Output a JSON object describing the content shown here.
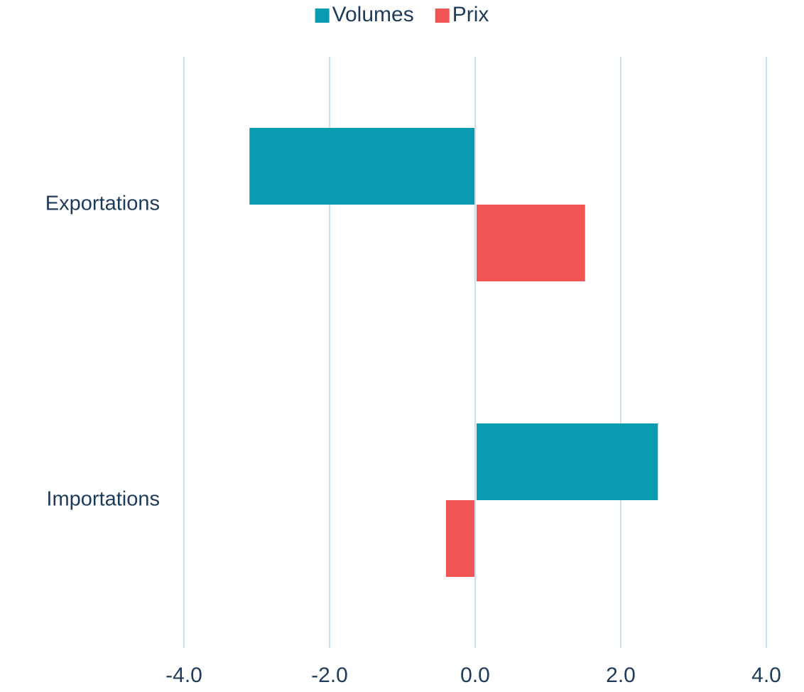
{
  "chart_data": {
    "type": "barh",
    "categories": [
      "Exportations",
      "Importations"
    ],
    "series": [
      {
        "name": "Volumes",
        "color": "#0a9bb0",
        "values": [
          -3.1,
          2.5
        ]
      },
      {
        "name": "Prix",
        "color": "#f05454",
        "values": [
          1.5,
          -0.4
        ]
      }
    ],
    "xlim": [
      -4,
      4
    ],
    "xticks": [
      {
        "value": -4,
        "label": "-4.0"
      },
      {
        "value": -2,
        "label": "-2.0"
      },
      {
        "value": 0,
        "label": "0.0"
      },
      {
        "value": 2,
        "label": "2.0"
      },
      {
        "value": 4,
        "label": "4.0"
      }
    ],
    "grid": true,
    "legend": "top"
  }
}
